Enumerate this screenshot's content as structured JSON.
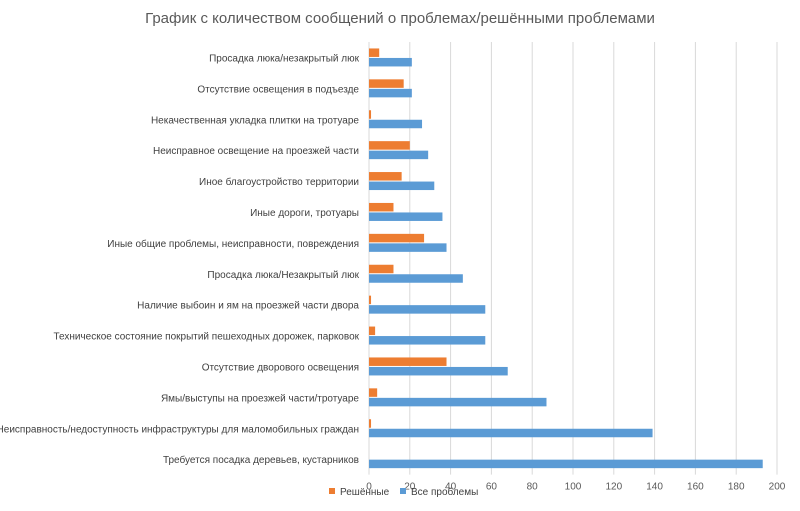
{
  "chart_data": {
    "type": "bar",
    "orientation": "horizontal",
    "title": "График с количеством сообщений о проблемах/решёнными проблемами",
    "categories": [
      "Просадка люка/незакрытый люк",
      "Отсутствие освещения в подъезде",
      "Некачественная укладка плитки на тротуаре",
      "Неисправное освещение на проезжей части",
      "Иное благоустройство территории",
      "Иные дороги, тротуары",
      "Иные общие проблемы, неисправности, повреждения",
      "Просадка люка/Незакрытый люк",
      "Наличие выбоин и ям на проезжей части двора",
      "Техническое состояние покрытий пешеходных дорожек, парковок",
      "Отсутствие дворового освещения",
      "Ямы/выступы на проезжей части/тротуаре",
      "Неисправность/недоступность инфраструктуры для маломобильных граждан",
      "Требуется посадка деревьев, кустарников"
    ],
    "series": [
      {
        "name": "Решённые",
        "color": "#ed7d31",
        "values": [
          5,
          17,
          1,
          20,
          16,
          12,
          27,
          12,
          1,
          3,
          38,
          4,
          1,
          0
        ]
      },
      {
        "name": "Все проблемы",
        "color": "#5b9bd5",
        "values": [
          21,
          21,
          26,
          29,
          32,
          36,
          38,
          46,
          57,
          57,
          68,
          87,
          139,
          193
        ]
      }
    ],
    "xlim": [
      0,
      200
    ],
    "xticks": [
      "0",
      "20",
      "40",
      "60",
      "80",
      "100",
      "120",
      "140",
      "160",
      "180",
      "200"
    ],
    "grid": true,
    "legend_position": "bottom"
  }
}
